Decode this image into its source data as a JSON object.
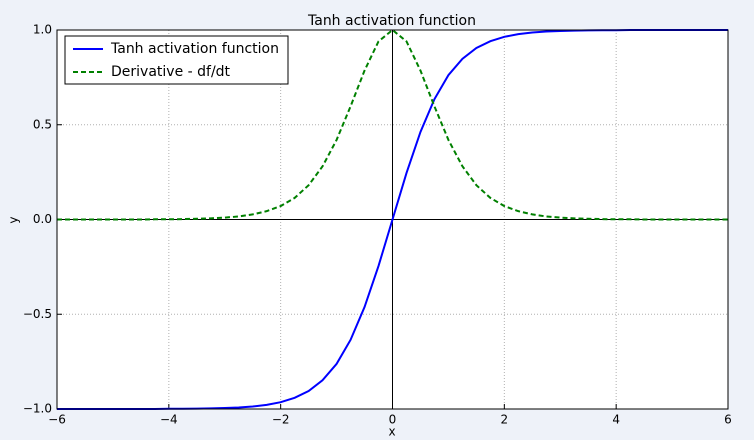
{
  "chart_data": {
    "type": "line",
    "title": "Tanh activation function",
    "x_label": "x",
    "y_label": "y",
    "x": [
      -6,
      -5.75,
      -5.5,
      -5.25,
      -5,
      -4.75,
      -4.5,
      -4.25,
      -4,
      -3.75,
      -3.5,
      -3.25,
      -3,
      -2.75,
      -2.5,
      -2.25,
      -2,
      -1.75,
      -1.5,
      -1.25,
      -1,
      -0.75,
      -0.5,
      -0.25,
      0,
      0.25,
      0.5,
      0.75,
      1,
      1.25,
      1.5,
      1.75,
      2,
      2.25,
      2.5,
      2.75,
      3,
      3.25,
      3.5,
      3.75,
      4,
      4.25,
      4.5,
      4.75,
      5,
      5.25,
      5.5,
      5.75,
      6
    ],
    "series": [
      {
        "name": "Tanh activation function",
        "color": "#0000ff",
        "linestyle": "solid",
        "values": [
          -1,
          -1,
          -1,
          -1,
          -1,
          -1,
          -1,
          -1,
          -0.999,
          -0.999,
          -0.998,
          -0.997,
          -0.995,
          -0.992,
          -0.987,
          -0.978,
          -0.964,
          -0.941,
          -0.905,
          -0.848,
          -0.762,
          -0.635,
          -0.462,
          -0.245,
          0,
          0.245,
          0.462,
          0.635,
          0.762,
          0.848,
          0.905,
          0.941,
          0.964,
          0.978,
          0.987,
          0.992,
          0.995,
          0.997,
          0.998,
          0.999,
          0.999,
          1,
          1,
          1,
          1,
          1,
          1,
          1,
          1
        ]
      },
      {
        "name": "Derivative - df/dt",
        "color": "#008000",
        "linestyle": "dashed",
        "values": [
          0,
          0,
          0,
          0,
          0,
          0,
          0,
          0.001,
          0.001,
          0.002,
          0.004,
          0.006,
          0.01,
          0.016,
          0.027,
          0.044,
          0.071,
          0.114,
          0.181,
          0.281,
          0.42,
          0.597,
          0.786,
          0.94,
          1,
          0.94,
          0.786,
          0.597,
          0.42,
          0.281,
          0.181,
          0.114,
          0.071,
          0.044,
          0.027,
          0.016,
          0.01,
          0.006,
          0.004,
          0.002,
          0.001,
          0.001,
          0,
          0,
          0,
          0,
          0,
          0,
          0
        ]
      }
    ],
    "xlim": [
      -6,
      6
    ],
    "xticks": [
      {
        "value": -6,
        "label": "−6"
      },
      {
        "value": -4,
        "label": "−4"
      },
      {
        "value": -2,
        "label": "−2"
      },
      0,
      2,
      4,
      6
    ],
    "ylim": [
      -1,
      1
    ],
    "yticks": [
      {
        "value": -1,
        "label": "−1.0"
      },
      {
        "value": -0.5,
        "label": "−0.5"
      },
      {
        "value": 0,
        "label": "0.0"
      },
      0.5,
      {
        "value": 1,
        "label": "1.0"
      }
    ],
    "grid": true,
    "legend": "upper left"
  }
}
